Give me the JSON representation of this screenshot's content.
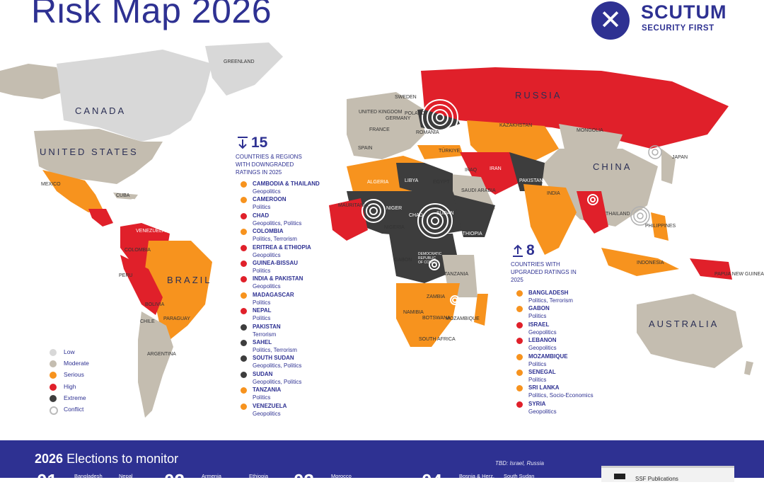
{
  "header": {
    "title": "Risk Map 2026"
  },
  "brand": {
    "name": "SCUTUM",
    "tagline": "SECURITY FIRST",
    "logo_icon": "x-mark-icon"
  },
  "colors": {
    "low": "#d8d8d8",
    "moderate": "#c4bdb0",
    "serious": "#f7931e",
    "high": "#e0202a",
    "extreme": "#3d3d3d",
    "conflict": "#ffffff",
    "brand": "#2e3192",
    "ocean": "#ffffff"
  },
  "map_labels": {
    "canada": "CANADA",
    "united_states": "UNITED STATES",
    "russia": "RUSSIA",
    "china": "CHINA",
    "brazil": "BRAZIL",
    "australia": "AUSTRALIA",
    "greenland": "GREENLAND",
    "india": "INDIA",
    "kazakhstan": "KAZAKHSTAN",
    "mongolia": "MONGOLIA",
    "japan": "JAPAN",
    "philippines": "PHILIPPINES",
    "indonesia": "INDONESIA",
    "papua": "PAPUA NEW GUINEA",
    "iran": "IRAN",
    "libya": "LIBYA",
    "algeria": "ALGERIA",
    "chad": "CHAD",
    "niger": "NIGER",
    "sudan": "SUDAN",
    "egypt": "EGYPT",
    "spain": "SPAIN",
    "france": "FRANCE",
    "sweden": "SWEDEN",
    "uk": "UNITED KINGDOM",
    "argentina": "ARGENTINA",
    "bolivia": "BOLIVIA",
    "peru": "PERU",
    "venezuela": "VENEZUELA",
    "colombia": "COLOMBIA",
    "mexico": "MEXICO",
    "saudi": "SAUDI ARABIA",
    "turkey": "TÜRKIYE",
    "iraq": "IRAQ",
    "pakistan": "PAKISTAN",
    "mauritania": "MAURITANIA",
    "nigeria": "NIGERIA",
    "tanzania": "TANZANIA",
    "zambia": "ZAMBIA",
    "namibia": "NAMIBIA",
    "botswana": "BOTSWANA",
    "south_africa": "SOUTH AFRICA",
    "mozambique": "MOZAMBIQUE",
    "ethiopia": "ETHIOPIA",
    "gabon": "GABON",
    "chile": "CHILE",
    "paraguay": "PARAGUAY",
    "thailand": "THAILAND",
    "cuba": "CUBA",
    "germany": "GERMANY",
    "poland": "POLAND",
    "romania": "ROMANIA",
    "drc": "DEMOCRATIC REPUBLIC OF CONGO"
  },
  "downgraded": {
    "count": "15",
    "subtitle": "COUNTRIES & REGIONS WITH DOWNGRADED RATINGS IN 2025",
    "icon": "arrow-down-icon",
    "items": [
      {
        "name": "CAMBODIA & THAILAND",
        "detail": "Geopolitics",
        "level": "serious"
      },
      {
        "name": "CAMEROON",
        "detail": "Politics",
        "level": "serious"
      },
      {
        "name": "CHAD",
        "detail": "Geopolitics, Politics",
        "level": "high"
      },
      {
        "name": "COLOMBIA",
        "detail": "Politics, Terrorism",
        "level": "serious"
      },
      {
        "name": "ERITREA & ETHIOPIA",
        "detail": "Geopolitics",
        "level": "high"
      },
      {
        "name": "GUINEA-BISSAU",
        "detail": "Politics",
        "level": "high"
      },
      {
        "name": "INDIA & PAKISTAN",
        "detail": "Geopolitics",
        "level": "high"
      },
      {
        "name": "MADAGASCAR",
        "detail": "Politics",
        "level": "serious"
      },
      {
        "name": "NEPAL",
        "detail": "Politics",
        "level": "high"
      },
      {
        "name": "PAKISTAN",
        "detail": "Terrorism",
        "level": "extreme"
      },
      {
        "name": "SAHEL",
        "detail": "Politics, Terrorism",
        "level": "extreme"
      },
      {
        "name": "SOUTH SUDAN",
        "detail": "Geopolitics, Politics",
        "level": "extreme"
      },
      {
        "name": "SUDAN",
        "detail": "Geopolitics, Politics",
        "level": "extreme"
      },
      {
        "name": "TANZANIA",
        "detail": "Politics",
        "level": "serious"
      },
      {
        "name": "VENEZUELA",
        "detail": "Geopolitics",
        "level": "serious"
      }
    ]
  },
  "upgraded": {
    "count": "8",
    "subtitle": "COUNTRIES WITH UPGRADED RATINGS IN 2025",
    "icon": "arrow-up-icon",
    "items": [
      {
        "name": "BANGLADESH",
        "detail": "Politics, Terrorism",
        "level": "serious"
      },
      {
        "name": "GABON",
        "detail": "Politics",
        "level": "serious"
      },
      {
        "name": "ISRAEL",
        "detail": "Geopolitics",
        "level": "high"
      },
      {
        "name": "LEBANON",
        "detail": "Geopolitics",
        "level": "high"
      },
      {
        "name": "MOZAMBIQUE",
        "detail": "Politics",
        "level": "serious"
      },
      {
        "name": "SENEGAL",
        "detail": "Politics",
        "level": "serious"
      },
      {
        "name": "SRI LANKA",
        "detail": "Politics, Socio-Economics",
        "level": "serious"
      },
      {
        "name": "SYRIA",
        "detail": "Geopolitics",
        "level": "high"
      }
    ]
  },
  "legend": [
    {
      "label": "Low",
      "level": "low"
    },
    {
      "label": "Moderate",
      "level": "moderate"
    },
    {
      "label": "Serious",
      "level": "serious"
    },
    {
      "label": "High",
      "level": "high"
    },
    {
      "label": "Extreme",
      "level": "extreme"
    },
    {
      "label": "Conflict",
      "level": "conflict"
    }
  ],
  "footer": {
    "title_year": "2026",
    "title_rest": "Elections to monitor",
    "tbd": "TBD: Israel, Russia",
    "columns": [
      {
        "num": "01",
        "names": [
          "Bangladesh",
          "Nepal"
        ]
      },
      {
        "num": "02",
        "names": [
          "Armenia",
          "Ethiopia"
        ]
      },
      {
        "num": "03",
        "names": [
          "Morocco"
        ]
      },
      {
        "num": "04",
        "names": [
          "Bosnia & Herz.",
          "South Sudan"
        ]
      }
    ],
    "publication": "SSF Publications"
  }
}
